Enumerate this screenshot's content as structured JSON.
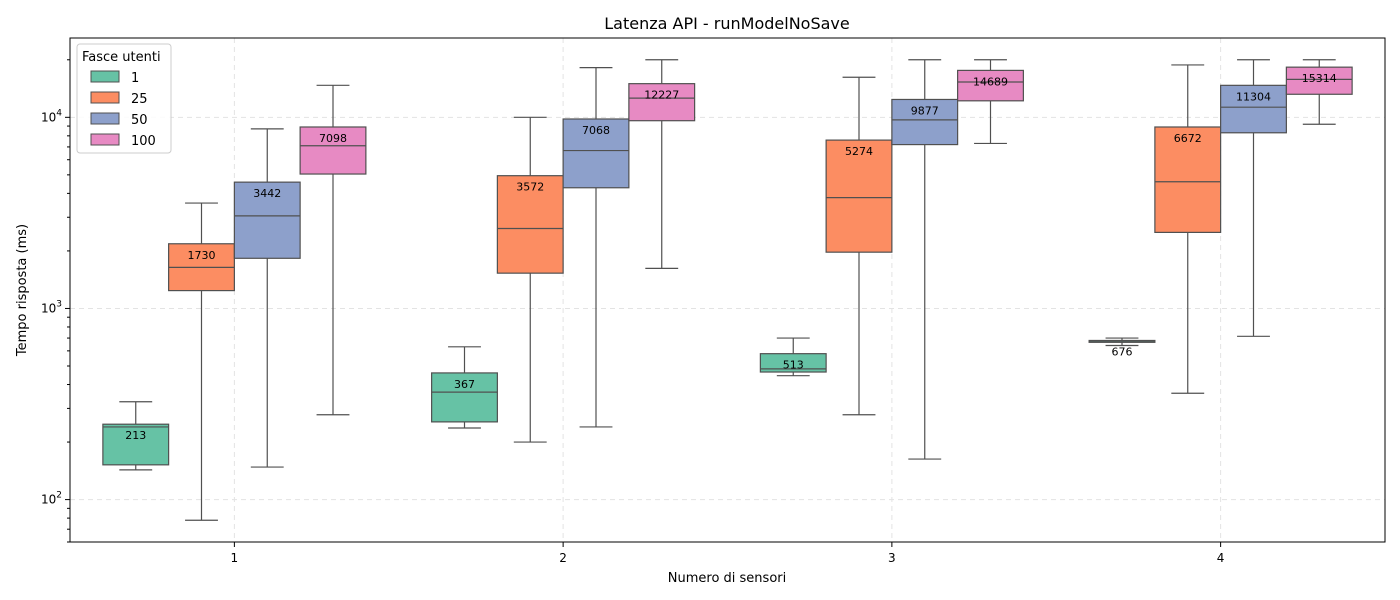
{
  "chart_data": {
    "type": "box",
    "title": "Latenza API - runModelNoSave",
    "xlabel": "Numero di sensori",
    "ylabel": "Tempo risposta (ms)",
    "yscale": "log",
    "ylim": [
      60,
      26000
    ],
    "y_ticks": [
      {
        "value": 100,
        "base": "10",
        "exp": "2"
      },
      {
        "value": 1000,
        "base": "10",
        "exp": "3"
      },
      {
        "value": 10000,
        "base": "10",
        "exp": "4"
      }
    ],
    "grid": true,
    "categories": [
      "1",
      "2",
      "3",
      "4"
    ],
    "legend": {
      "title": "Fasce utenti",
      "position": "top-left"
    },
    "series": [
      {
        "name": "1",
        "color": "#66c2a5",
        "boxes": [
          {
            "whisker_low": 143,
            "q1": 152,
            "median": 240,
            "q3": 248,
            "whisker_high": 325,
            "label": "213"
          },
          {
            "whisker_low": 237,
            "q1": 255,
            "median": 365,
            "q3": 460,
            "whisker_high": 630,
            "label": "367"
          },
          {
            "whisker_low": 445,
            "q1": 465,
            "median": 483,
            "q3": 580,
            "whisker_high": 700,
            "label": "513"
          },
          {
            "whisker_low": 640,
            "q1": 665,
            "median": 670,
            "q3": 680,
            "whisker_high": 700,
            "label": "676"
          }
        ]
      },
      {
        "name": "25",
        "color": "#fc8d62",
        "boxes": [
          {
            "whisker_low": 78,
            "q1": 1240,
            "median": 1640,
            "q3": 2180,
            "whisker_high": 3560,
            "label": "1730"
          },
          {
            "whisker_low": 200,
            "q1": 1530,
            "median": 2620,
            "q3": 4950,
            "whisker_high": 10000,
            "label": "3572"
          },
          {
            "whisker_low": 278,
            "q1": 1970,
            "median": 3800,
            "q3": 7600,
            "whisker_high": 16200,
            "label": "5274"
          },
          {
            "whisker_low": 360,
            "q1": 2500,
            "median": 4600,
            "q3": 8900,
            "whisker_high": 18800,
            "label": "6672"
          }
        ]
      },
      {
        "name": "50",
        "color": "#8da0cb",
        "boxes": [
          {
            "whisker_low": 148,
            "q1": 1830,
            "median": 3050,
            "q3": 4580,
            "whisker_high": 8700,
            "label": "3442"
          },
          {
            "whisker_low": 240,
            "q1": 4280,
            "median": 6700,
            "q3": 9800,
            "whisker_high": 18200,
            "label": "7068"
          },
          {
            "whisker_low": 163,
            "q1": 7200,
            "median": 9700,
            "q3": 12400,
            "whisker_high": 20000,
            "label": "9877"
          },
          {
            "whisker_low": 715,
            "q1": 8300,
            "median": 11300,
            "q3": 14700,
            "whisker_high": 20000,
            "label": "11304"
          }
        ]
      },
      {
        "name": "100",
        "color": "#e78ac3",
        "boxes": [
          {
            "whisker_low": 278,
            "q1": 5050,
            "median": 7100,
            "q3": 8900,
            "whisker_high": 14700,
            "label": "7098"
          },
          {
            "whisker_low": 1620,
            "q1": 9600,
            "median": 12600,
            "q3": 15000,
            "whisker_high": 20000,
            "label": "12227"
          },
          {
            "whisker_low": 7300,
            "q1": 12200,
            "median": 15300,
            "q3": 17600,
            "whisker_high": 20000,
            "label": "14689"
          },
          {
            "whisker_low": 9200,
            "q1": 13200,
            "median": 15800,
            "q3": 18300,
            "whisker_high": 20000,
            "label": "15314"
          }
        ]
      }
    ]
  }
}
